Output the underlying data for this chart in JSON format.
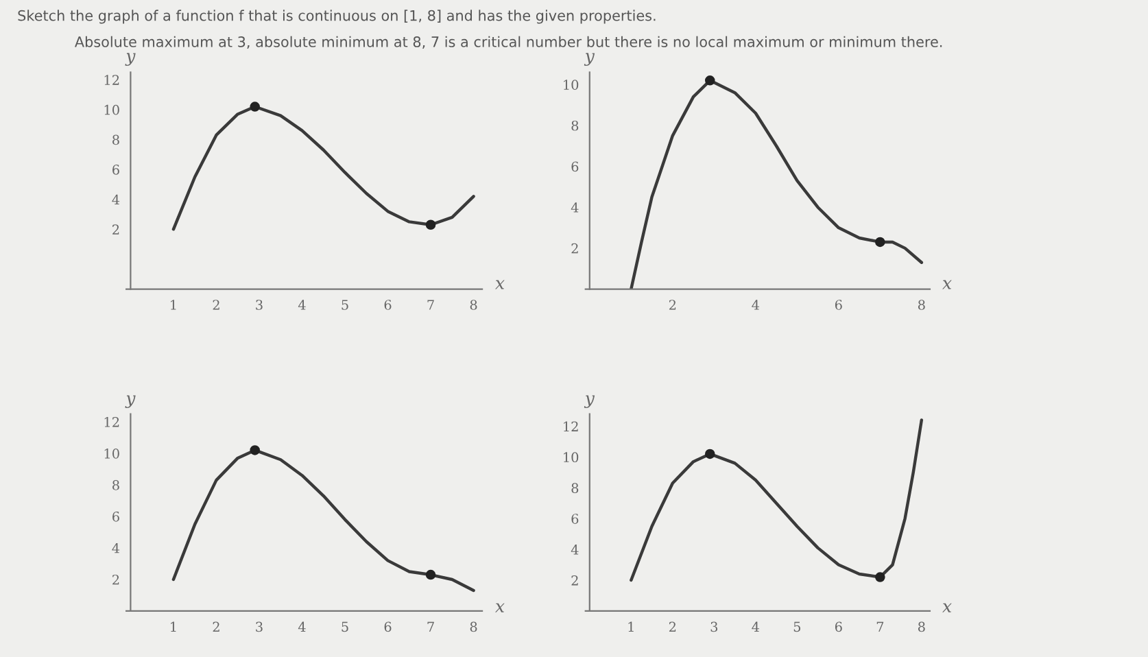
{
  "chart_data": [
    {
      "type": "line",
      "title": "Sketch the graph of a function f that is continuous on [1, 8] and has the given properties.",
      "subtitle": "Absolute maximum at 3, absolute minimum at 8, 7 is a critical number but there is no local maximum or minimum there.",
      "xlabel": "x",
      "ylabel": "y",
      "xlim": [
        -0.1,
        8.2
      ],
      "ylim": [
        -2,
        12.5
      ],
      "xticks": [
        1,
        2,
        3,
        4,
        5,
        6,
        7,
        8
      ],
      "yticks": [
        2,
        4,
        6,
        8,
        10,
        12
      ],
      "grid": false,
      "legend": false,
      "series": [
        {
          "type": "line",
          "marker": "none",
          "color": "#3a3a3a",
          "x": [
            1,
            1.5,
            2,
            2.5,
            2.9,
            3.5,
            4,
            4.5,
            5,
            5.5,
            6,
            6.5,
            7,
            7.5,
            8
          ],
          "values": [
            2,
            5.5,
            8.3,
            9.7,
            10.2,
            9.6,
            8.6,
            7.3,
            5.8,
            4.4,
            3.2,
            2.5,
            2.3,
            2.8,
            4.2
          ]
        },
        {
          "type": "scatter",
          "marker": "circle",
          "color": "#222222",
          "x": [
            2.9,
            7
          ],
          "values": [
            10.2,
            2.3
          ]
        }
      ]
    },
    {
      "type": "line",
      "xlabel": "x",
      "ylabel": "y",
      "xlim": [
        -0.1,
        8.2
      ],
      "ylim": [
        0,
        10.6
      ],
      "xticks": [
        2,
        4,
        6,
        8
      ],
      "yticks": [
        2,
        4,
        6,
        8,
        10
      ],
      "grid": false,
      "legend": false,
      "series": [
        {
          "type": "line",
          "marker": "none",
          "color": "#3a3a3a",
          "x": [
            1,
            1.25,
            1.5,
            2,
            2.5,
            2.9,
            3.5,
            4,
            4.5,
            5,
            5.5,
            6,
            6.5,
            7,
            7.3,
            7.6,
            8
          ],
          "values": [
            0,
            2.3,
            4.5,
            7.5,
            9.4,
            10.2,
            9.6,
            8.6,
            7,
            5.3,
            4,
            3,
            2.5,
            2.3,
            2.3,
            2,
            1.3
          ]
        },
        {
          "type": "scatter",
          "marker": "circle",
          "color": "#222222",
          "x": [
            2.9,
            7
          ],
          "values": [
            10.2,
            2.3
          ]
        }
      ]
    },
    {
      "type": "line",
      "xlabel": "x",
      "ylabel": "y",
      "xlim": [
        -0.1,
        8.2
      ],
      "ylim": [
        0,
        12.5
      ],
      "xticks": [
        1,
        2,
        3,
        4,
        5,
        6,
        7,
        8
      ],
      "yticks": [
        2,
        4,
        6,
        8,
        10,
        12
      ],
      "grid": false,
      "legend": false,
      "series": [
        {
          "type": "line",
          "marker": "none",
          "color": "#3a3a3a",
          "x": [
            1,
            1.5,
            2,
            2.5,
            2.9,
            3.5,
            4,
            4.5,
            5,
            5.5,
            6,
            6.5,
            7,
            7.5,
            8
          ],
          "values": [
            2,
            5.5,
            8.3,
            9.7,
            10.2,
            9.6,
            8.6,
            7.3,
            5.8,
            4.4,
            3.2,
            2.5,
            2.3,
            2,
            1.3
          ]
        },
        {
          "type": "scatter",
          "marker": "circle",
          "color": "#222222",
          "x": [
            2.9,
            7
          ],
          "values": [
            10.2,
            2.3
          ]
        }
      ]
    },
    {
      "type": "line",
      "xlabel": "x",
      "ylabel": "y",
      "xlim": [
        -0.1,
        8.2
      ],
      "ylim": [
        0,
        12.8
      ],
      "xticks": [
        1,
        2,
        3,
        4,
        5,
        6,
        7,
        8
      ],
      "yticks": [
        2,
        4,
        6,
        8,
        10,
        12
      ],
      "grid": false,
      "legend": false,
      "series": [
        {
          "type": "line",
          "marker": "none",
          "color": "#3a3a3a",
          "x": [
            1,
            1.5,
            2,
            2.5,
            2.9,
            3.5,
            4,
            4.5,
            5,
            5.5,
            6,
            6.5,
            7,
            7.3,
            7.6,
            7.8,
            8
          ],
          "values": [
            2,
            5.5,
            8.3,
            9.7,
            10.2,
            9.6,
            8.5,
            7,
            5.5,
            4.1,
            3,
            2.4,
            2.2,
            3,
            6,
            9,
            12.4
          ]
        },
        {
          "type": "scatter",
          "marker": "circle",
          "color": "#222222",
          "x": [
            2.9,
            7
          ],
          "values": [
            10.2,
            2.2
          ]
        }
      ]
    }
  ]
}
